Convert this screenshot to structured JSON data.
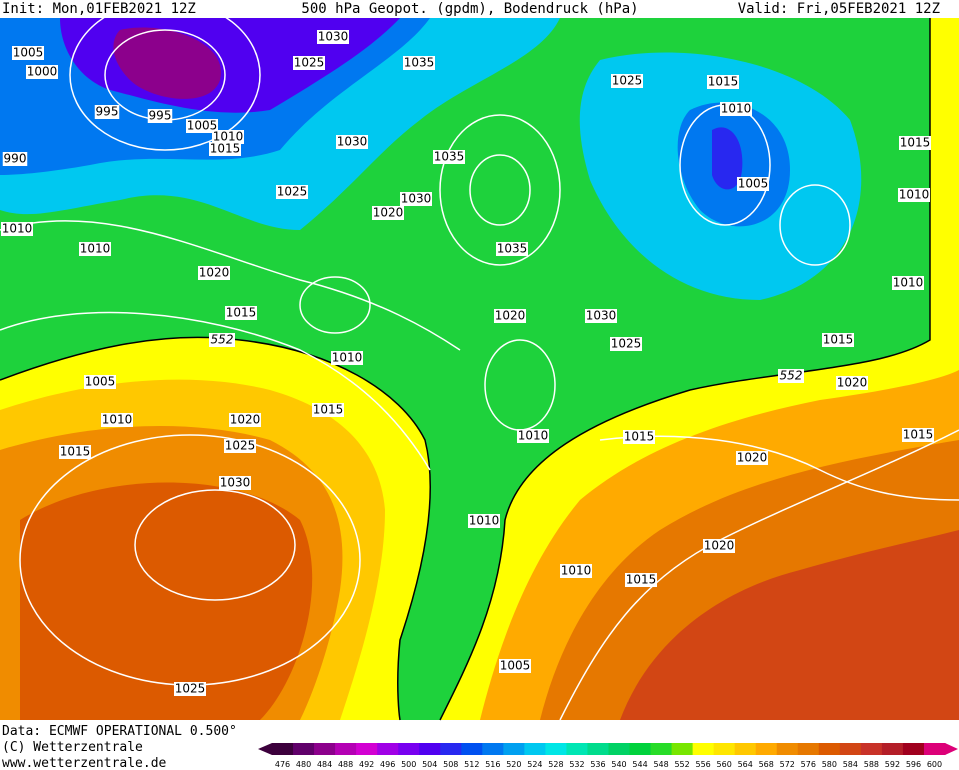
{
  "header": {
    "init": "Init: Mon,01FEB2021 12Z",
    "title": "500 hPa Geopot. (gpdm), Bodendruck (hPa)",
    "valid": "Valid: Fri,05FEB2021 12Z"
  },
  "footer": {
    "data_source": "Data: ECMWF OPERATIONAL 0.500°",
    "copyright": "(C) Wetterzentrale",
    "url": "www.wetterzentrale.de"
  },
  "legend": {
    "values": [
      "476",
      "480",
      "484",
      "488",
      "492",
      "496",
      "500",
      "504",
      "508",
      "512",
      "516",
      "520",
      "524",
      "528",
      "532",
      "536",
      "540",
      "544",
      "548",
      "552",
      "556",
      "560",
      "564",
      "568",
      "572",
      "576",
      "580",
      "584",
      "588",
      "592",
      "596",
      "600"
    ],
    "colors": [
      "#3c003c",
      "#60006a",
      "#8c008c",
      "#b400b4",
      "#d200d2",
      "#a000e6",
      "#7800f0",
      "#5000f0",
      "#2828f0",
      "#0050f0",
      "#0078f0",
      "#00a0f0",
      "#00c8f0",
      "#00e6e6",
      "#00e6b4",
      "#00dc8c",
      "#00d264",
      "#00d23c",
      "#28dc28",
      "#78e600",
      "#ffff00",
      "#ffe600",
      "#ffc800",
      "#ffaa00",
      "#f08c00",
      "#e67800",
      "#dc5a00",
      "#d24614",
      "#c83228",
      "#b41e28",
      "#a0001e",
      "#dc0078"
    ]
  },
  "isobar_labels": [
    "1030",
    "1025",
    "1035",
    "1005",
    "1000",
    "995",
    "995",
    "1005",
    "1010",
    "1015",
    "990",
    "1030",
    "1035",
    "1025",
    "1030",
    "1020",
    "1010",
    "1010",
    "1020",
    "1035",
    "1015",
    "1020",
    "1030",
    "1025",
    "1010",
    "1005",
    "1015",
    "1010",
    "1020",
    "1025",
    "1015",
    "1010",
    "1015",
    "1030",
    "1020",
    "1010",
    "1020",
    "1010",
    "1015",
    "1005",
    "1025",
    "1025",
    "1015",
    "1010",
    "1005",
    "1015",
    "1010",
    "1010",
    "1015",
    "1020",
    "1015"
  ],
  "contour_labels": [
    "552",
    "552"
  ]
}
